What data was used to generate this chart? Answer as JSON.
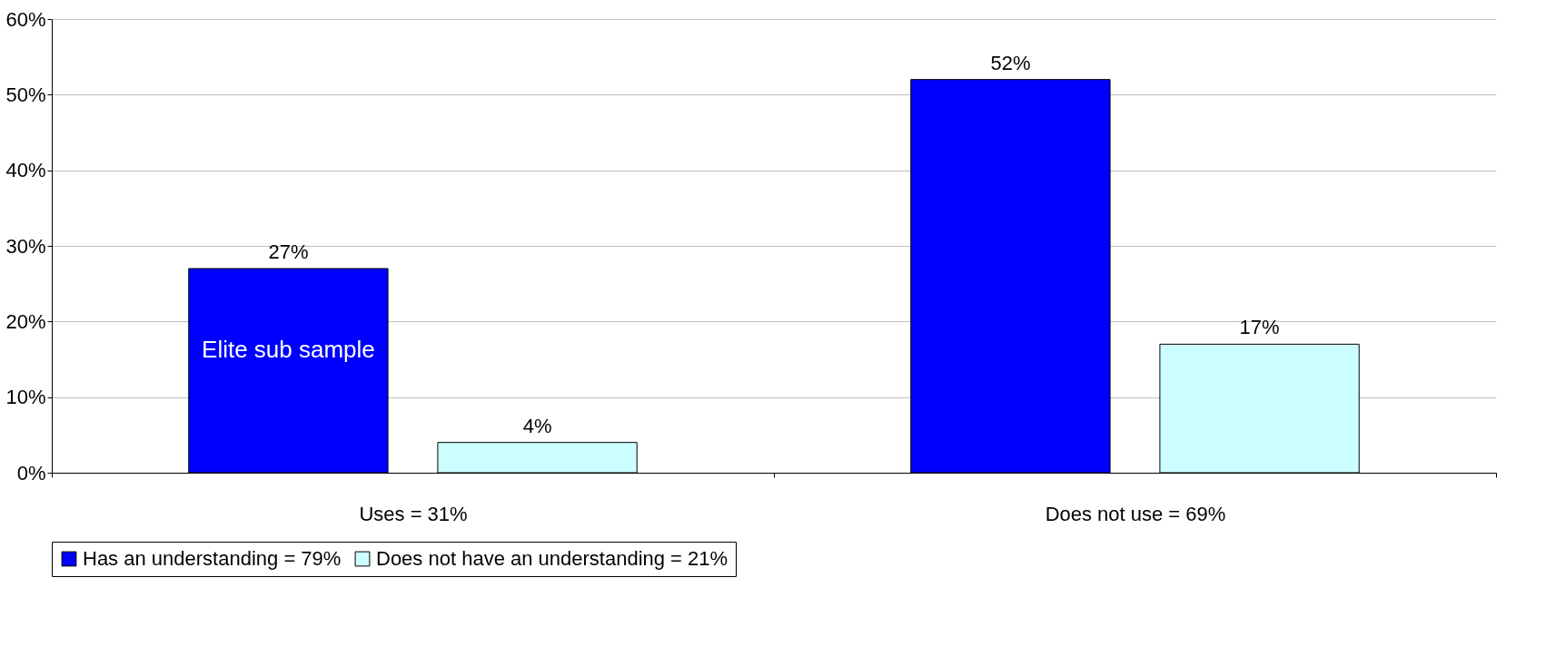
{
  "chart_data": {
    "type": "bar",
    "categories": [
      "Uses = 31%",
      "Does not use = 69%"
    ],
    "series": [
      {
        "name": "Has an understanding = 79%",
        "color": "#0000ff",
        "values": [
          27,
          52
        ],
        "value_labels": [
          "27%",
          "52%"
        ]
      },
      {
        "name": "Does not have an understanding = 21%",
        "color": "#ccffff",
        "values": [
          4,
          17
        ],
        "value_labels": [
          "4%",
          "17%"
        ]
      }
    ],
    "ylim": [
      0,
      60
    ],
    "yticks": [
      {
        "value": 0,
        "label": "0%"
      },
      {
        "value": 10,
        "label": "10%"
      },
      {
        "value": 20,
        "label": "20%"
      },
      {
        "value": 30,
        "label": "30%"
      },
      {
        "value": 40,
        "label": "40%"
      },
      {
        "value": 50,
        "label": "50%"
      },
      {
        "value": 60,
        "label": "60%"
      }
    ],
    "grid": "y",
    "legend": "bottom",
    "annotations": [
      "Elite sub sample"
    ]
  }
}
